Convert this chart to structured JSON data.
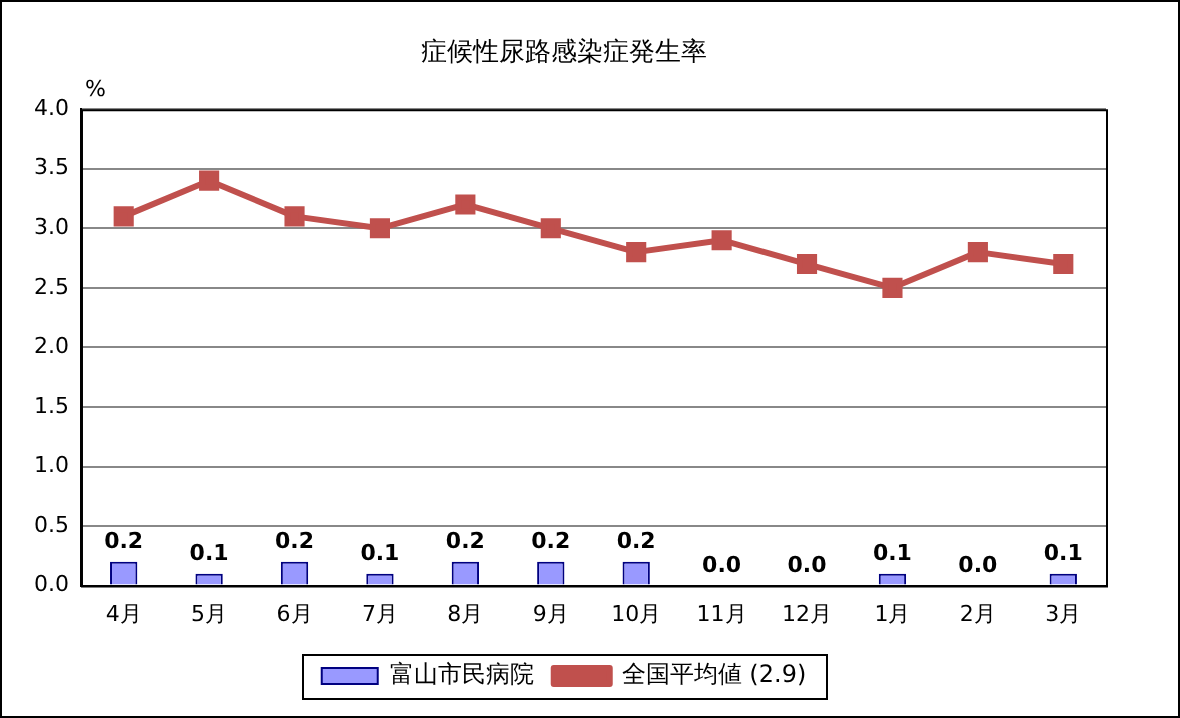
{
  "chart_data": {
    "type": "bar",
    "title": "症候性尿路感染症発生率",
    "ylabel": "%",
    "categories": [
      "4月",
      "5月",
      "6月",
      "7月",
      "8月",
      "9月",
      "10月",
      "11月",
      "12月",
      "1月",
      "2月",
      "3月"
    ],
    "series": [
      {
        "name": "富山市民病院",
        "color": "#9999ff",
        "values": [
          0.2,
          0.1,
          0.2,
          0.1,
          0.2,
          0.2,
          0.2,
          0.0,
          0.0,
          0.1,
          0.0,
          0.1
        ],
        "value_labels": [
          "0.2",
          "0.1",
          "0.2",
          "0.1",
          "0.2",
          "0.2",
          "0.2",
          "0.0",
          "0.0",
          "0.1",
          "0.0",
          "0.1"
        ]
      },
      {
        "name": "全国平均値 (2.9)",
        "type": "line",
        "color": "#c0504d",
        "values": [
          3.1,
          3.4,
          3.1,
          3.0,
          3.2,
          3.0,
          2.8,
          2.9,
          2.7,
          2.5,
          2.8,
          2.7
        ]
      }
    ],
    "ylim": [
      0,
      4
    ],
    "yticks": [
      {
        "value": 0,
        "label": "0.0"
      },
      {
        "value": 0.5,
        "label": "0.5"
      },
      {
        "value": 1,
        "label": "1.0"
      },
      {
        "value": 1.5,
        "label": "1.5"
      },
      {
        "value": 2,
        "label": "2.0"
      },
      {
        "value": 2.5,
        "label": "2.5"
      },
      {
        "value": 3,
        "label": "3.0"
      },
      {
        "value": 3.5,
        "label": "3.5"
      },
      {
        "value": 4,
        "label": "4.0"
      }
    ],
    "grid": "y",
    "legend": "bottom",
    "marker": "square",
    "line_style": "solid"
  }
}
